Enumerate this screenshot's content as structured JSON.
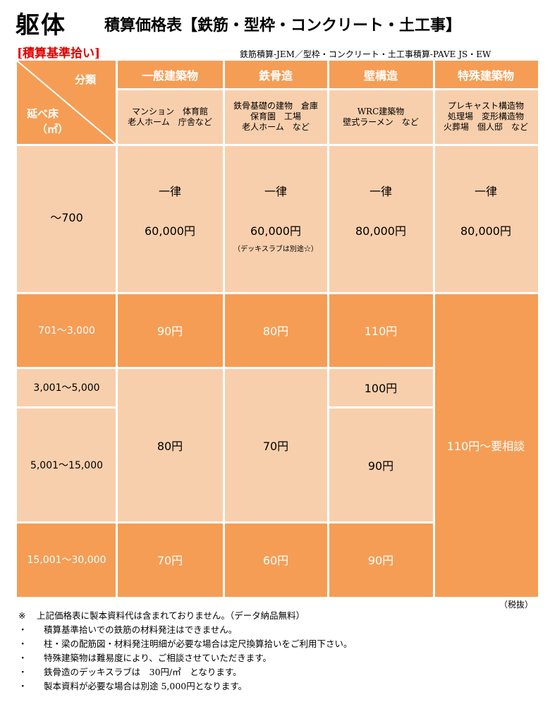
{
  "header": {
    "title": "躯体",
    "subtitle": "積算価格表【鉄筋・型枠・コンクリート・土工事】",
    "tag": "[積算基準拾い]",
    "source": "鉄筋積算-JEM／型枠・コンクリート・土工事積算-PAVE JS・EW"
  },
  "table": {
    "corner": {
      "top_label": "分類",
      "left_label": "延べ床",
      "unit": "（㎡）"
    },
    "columns": [
      {
        "name": "一般建築物",
        "desc": [
          "マンション　体育館",
          "老人ホーム　庁舎など"
        ]
      },
      {
        "name": "鉄骨造",
        "desc": [
          "鉄骨基礎の建物　倉庫",
          "保育園　工場",
          "老人ホーム　など"
        ]
      },
      {
        "name": "壁構造",
        "desc": [
          "WRC建築物",
          "壁式ラーメン　など"
        ]
      },
      {
        "name": "特殊建築物",
        "desc": [
          "プレキャスト構造物",
          "処理場　変形構造物",
          "火葬場　個人邸　など"
        ]
      }
    ],
    "row_700": {
      "label": "～700",
      "flat": "一律",
      "prices": [
        "60,000円",
        "60,000円",
        "80,000円",
        "80,000円"
      ],
      "note": "（デッキスラブは別途☆）"
    },
    "row_labels": [
      "701～3,000",
      "3,001～5,000",
      "5,001～15,000",
      "15,001～30,000"
    ],
    "general": [
      "90円",
      "80円",
      "70円"
    ],
    "steel": [
      "80円",
      "70円",
      "60円"
    ],
    "wall": [
      "110円",
      "100円",
      "90円",
      "90円"
    ],
    "special": "110円～要相談"
  },
  "tax": "（税抜）",
  "notes": [
    {
      "bullet": "※",
      "text": "上記価格表に製本資料代は含まれておりません。（データ納品無料）"
    },
    {
      "bullet": "・",
      "text": "積算基準拾いでの鉄筋の材料発注はできません。"
    },
    {
      "bullet": "・",
      "text": "柱・梁の配筋図・材料発注明細が必要な場合は定尺換算拾いをご利用下さい。"
    },
    {
      "bullet": "・",
      "text": "特殊建築物は難易度により、ご相談させていただきます。"
    },
    {
      "bullet": "・",
      "text": "鉄骨造のデッキスラブは　30円/㎡　となります。"
    },
    {
      "bullet": "・",
      "text": "製本資料が必要な場合は別途 5,000円となります。"
    }
  ],
  "colors": {
    "dark_orange": "#f59d55",
    "light_peach": "#f8cfad",
    "red": "#e00000"
  }
}
